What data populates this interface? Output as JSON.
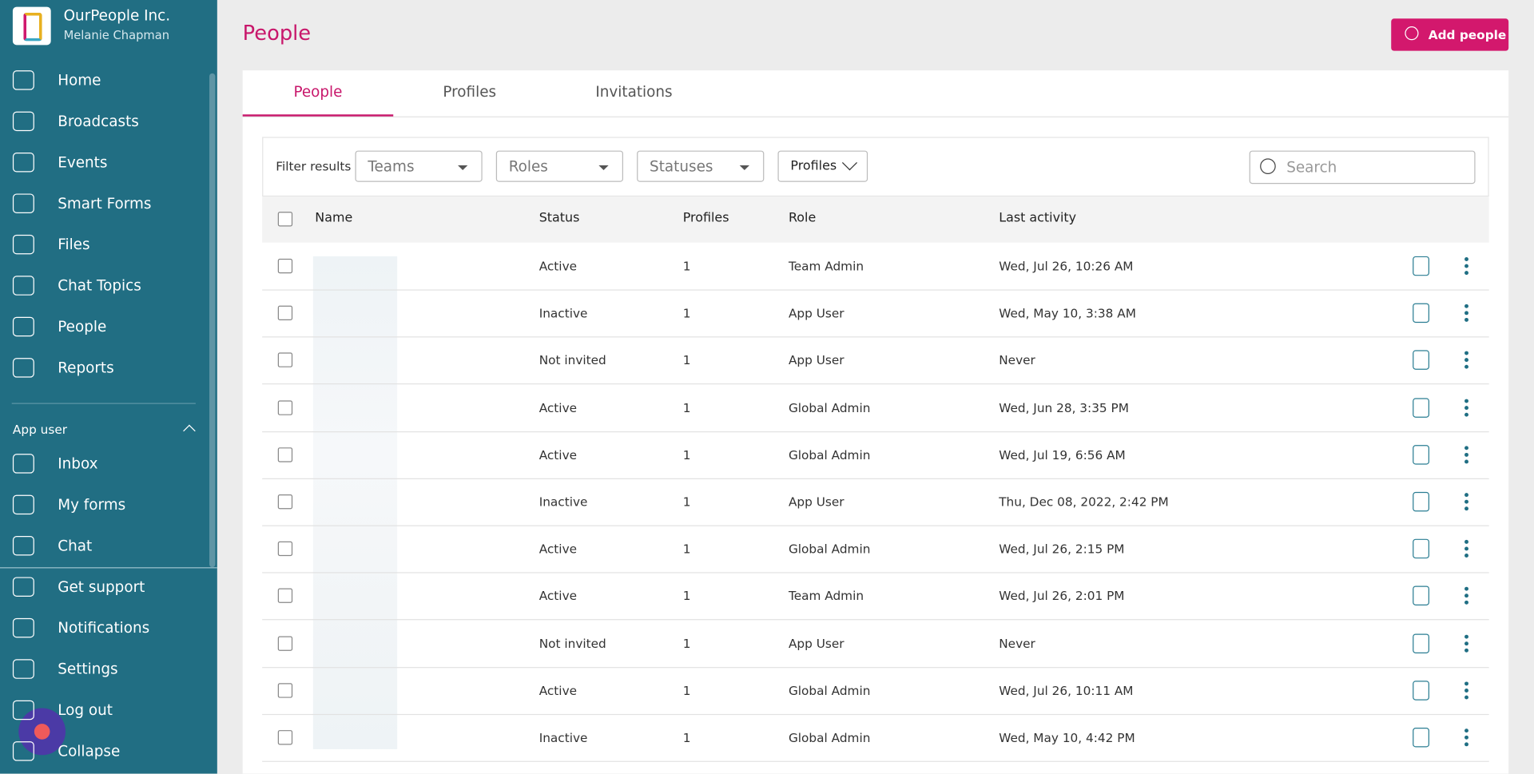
{
  "sidebar": {
    "org": "OurPeople Inc.",
    "user": "Melanie Chapman",
    "nav": [
      "Home",
      "Broadcasts",
      "Events",
      "Smart Forms",
      "Files",
      "Chat Topics",
      "People",
      "Reports"
    ],
    "section": "App user",
    "app_nav": [
      "Inbox",
      "My forms",
      "Chat"
    ],
    "bottom_nav": [
      "Get support",
      "Notifications",
      "Settings",
      "Log out",
      "Collapse"
    ]
  },
  "header": {
    "title": "People",
    "button": "Add people"
  },
  "tabs": [
    "People",
    "Profiles",
    "Invitations"
  ],
  "filters": {
    "label": "Filter results",
    "dropdowns": [
      "Teams",
      "Roles",
      "Statuses",
      "Profiles"
    ],
    "search": "Search"
  },
  "table": {
    "columns": [
      "Name",
      "Status",
      "Profiles",
      "Role",
      "Last activity"
    ],
    "rows": [
      [
        "Active",
        "1",
        "Team Admin",
        "Wed, Jul 26, 10:26 AM"
      ],
      [
        "Inactive",
        "1",
        "App User",
        "Wed, May 10, 3:38 AM"
      ],
      [
        "Not invited",
        "1",
        "App User",
        "Never"
      ],
      [
        "Active",
        "1",
        "Global Admin",
        "Wed, Jun 28, 3:35 PM"
      ],
      [
        "Active",
        "1",
        "Global Admin",
        "Wed, Jul 19, 6:56 AM"
      ],
      [
        "Inactive",
        "1",
        "App User",
        "Thu, Dec 08, 2022, 2:42 PM"
      ],
      [
        "Active",
        "1",
        "Global Admin",
        "Wed, Jul 26, 2:15 PM"
      ],
      [
        "Active",
        "1",
        "Team Admin",
        "Wed, Jul 26, 2:01 PM"
      ],
      [
        "Not invited",
        "1",
        "App User",
        "Never"
      ],
      [
        "Active",
        "1",
        "Global Admin",
        "Wed, Jul 26, 10:11 AM"
      ],
      [
        "Inactive",
        "1",
        "Global Admin",
        "Wed, May 10, 4:42 PM"
      ]
    ]
  }
}
